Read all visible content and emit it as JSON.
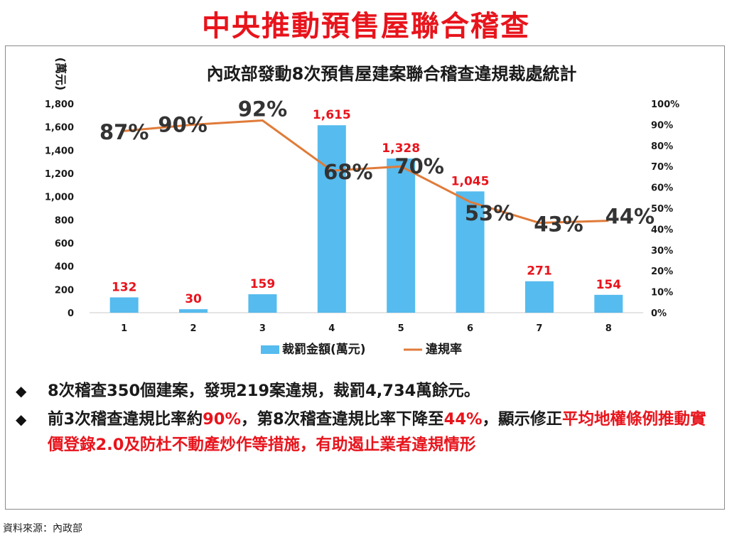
{
  "headline": "中央推動預售屋聯合稽查",
  "chart_data": {
    "type": "bar",
    "title": "內政部發動8次預售屋建案聯合稽查違規裁處統計",
    "ylabel": "(萬元)",
    "categories": [
      "1",
      "2",
      "3",
      "4",
      "5",
      "6",
      "7",
      "8"
    ],
    "ylim": [
      0,
      1800
    ],
    "yticks": [
      "0",
      "200",
      "400",
      "600",
      "800",
      "1,000",
      "1,200",
      "1,400",
      "1,600",
      "1,800"
    ],
    "y2lim": [
      0,
      100
    ],
    "y2ticks": [
      "0%",
      "10%",
      "20%",
      "30%",
      "40%",
      "50%",
      "60%",
      "70%",
      "80%",
      "90%",
      "100%"
    ],
    "series": [
      {
        "name": "裁罰金額(萬元)",
        "type": "bar",
        "axis": "left",
        "color": "#56bbee",
        "values": [
          132,
          30,
          159,
          1615,
          1328,
          1045,
          271,
          154
        ],
        "labels": [
          "132",
          "30",
          "159",
          "1,615",
          "1,328",
          "1,045",
          "271",
          "154"
        ],
        "label_color": "#e8141c"
      },
      {
        "name": "違規率",
        "type": "line",
        "axis": "right",
        "color": "#e07b39",
        "values": [
          87,
          90,
          92,
          68,
          70,
          53,
          43,
          44
        ],
        "labels": [
          "87%",
          "90%",
          "92%",
          "68%",
          "70%",
          "53%",
          "43%",
          "44%"
        ],
        "label_color": "#333333"
      }
    ],
    "grid": false,
    "legend": "bottom"
  },
  "bullets": [
    {
      "segments": [
        {
          "text": "8次稽查350個建案，發現219案違規，裁罰4,734萬餘元。",
          "red": false
        }
      ]
    },
    {
      "segments": [
        {
          "text": "前3次稽查違規比率約",
          "red": false
        },
        {
          "text": "90%",
          "red": true
        },
        {
          "text": "，第8次稽查違規比率下降至",
          "red": false
        },
        {
          "text": "44%",
          "red": true
        },
        {
          "text": "，顯示修正",
          "red": false
        },
        {
          "text": "平均地權條例推動實價登錄2.0及防杜不動產炒作等措施，有助遏止業者違規情形",
          "red": true
        }
      ]
    }
  ],
  "source": "資料來源：內政部"
}
